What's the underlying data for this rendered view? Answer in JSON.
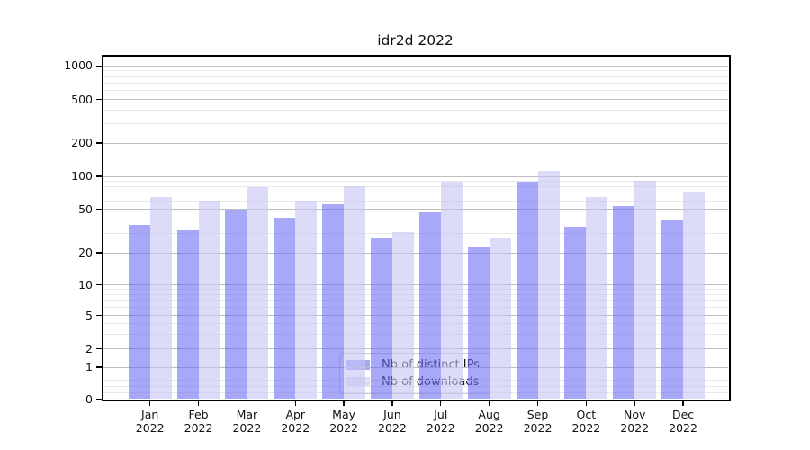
{
  "chart_data": {
    "type": "bar",
    "title": "idr2d 2022",
    "categories": [
      "Jan",
      "Feb",
      "Mar",
      "Apr",
      "May",
      "Jun",
      "Jul",
      "Aug",
      "Sep",
      "Oct",
      "Nov",
      "Dec"
    ],
    "year_label": "2022",
    "series": [
      {
        "name": "Nb of distinct IPs",
        "color_solid": "#a5a5f0",
        "color_rgba": "rgba(110,110,243,0.6)",
        "values": [
          36,
          32,
          50,
          42,
          56,
          27,
          47,
          23,
          89,
          35,
          54,
          40
        ]
      },
      {
        "name": "Nb of downloads",
        "color_solid": "#d9d9f8",
        "color_rgba": "rgba(197,197,243,0.6)",
        "values": [
          65,
          60,
          79,
          60,
          81,
          31,
          90,
          27,
          111,
          65,
          91,
          72
        ]
      }
    ],
    "xlabel": "",
    "ylabel": "",
    "y_axis": {
      "scale": "asinh (log-like above 1, linear near 0)",
      "tick_values": [
        1000,
        500,
        200,
        100,
        50,
        20,
        10,
        5,
        2,
        1,
        0
      ],
      "minor_gridline_values": [
        0.2,
        0.4,
        0.6,
        0.8,
        3,
        4,
        6,
        7,
        8,
        9,
        30,
        40,
        60,
        70,
        80,
        90,
        300,
        400,
        600,
        700,
        800,
        900
      ],
      "ylim": [
        0,
        1300
      ]
    },
    "grid": {
      "major": true,
      "minor": true
    },
    "legend": {
      "position": "lower center",
      "entries": [
        "Nb of distinct IPs",
        "Nb of downloads"
      ]
    }
  },
  "colors": {
    "background": "#ffffff",
    "spine": "#000000",
    "major_grid": "#bdbdbd",
    "minor_grid": "#e9e9e9",
    "text": "#111111"
  }
}
